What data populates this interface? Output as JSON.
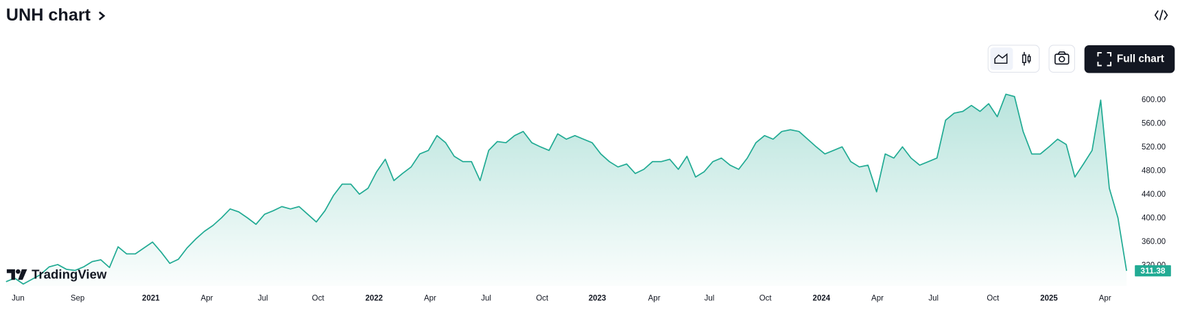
{
  "header": {
    "title": "UNH chart",
    "button_label": "Full chart",
    "logo": "TradingView"
  },
  "chart_data": {
    "type": "area",
    "color": "#22ab94",
    "values": [
      293,
      299,
      289,
      297,
      305,
      318,
      322,
      314,
      312,
      318,
      327,
      330,
      317,
      352,
      340,
      340,
      350,
      360,
      343,
      324,
      331,
      350,
      365,
      378,
      388,
      401,
      416,
      411,
      401,
      390,
      407,
      413,
      420,
      416,
      420,
      407,
      394,
      413,
      439,
      458,
      458,
      441,
      451,
      479,
      500,
      464,
      476,
      487,
      509,
      515,
      540,
      528,
      505,
      496,
      496,
      464,
      515,
      530,
      528,
      540,
      547,
      528,
      521,
      515,
      543,
      534,
      540,
      534,
      528,
      509,
      496,
      487,
      492,
      476,
      483,
      496,
      496,
      500,
      483,
      505,
      470,
      479,
      496,
      502,
      490,
      483,
      502,
      528,
      540,
      534,
      547,
      550,
      547,
      534,
      521,
      509,
      515,
      521,
      496,
      487,
      490,
      445,
      509,
      502,
      521,
      502,
      490,
      496,
      502,
      566,
      578,
      581,
      591,
      581,
      594,
      572,
      610,
      606,
      547,
      509,
      509,
      521,
      534,
      525,
      470,
      492,
      515,
      600,
      451,
      401,
      311.38
    ],
    "xlim": [
      0,
      130
    ],
    "xticks": [
      {
        "value": 1.4,
        "label": "Jun"
      },
      {
        "value": 8.3,
        "label": "Sep"
      },
      {
        "value": 16.8,
        "label": "2021"
      },
      {
        "value": 23.3,
        "label": "Apr"
      },
      {
        "value": 29.8,
        "label": "Jul"
      },
      {
        "value": 36.2,
        "label": "Oct"
      },
      {
        "value": 42.7,
        "label": "2022"
      },
      {
        "value": 49.2,
        "label": "Apr"
      },
      {
        "value": 55.7,
        "label": "Jul"
      },
      {
        "value": 62.2,
        "label": "Oct"
      },
      {
        "value": 68.6,
        "label": "2023"
      },
      {
        "value": 75.2,
        "label": "Apr"
      },
      {
        "value": 81.6,
        "label": "Jul"
      },
      {
        "value": 88.1,
        "label": "Oct"
      },
      {
        "value": 94.6,
        "label": "2024"
      },
      {
        "value": 101.1,
        "label": "Apr"
      },
      {
        "value": 107.6,
        "label": "Jul"
      },
      {
        "value": 114.5,
        "label": "Oct"
      },
      {
        "value": 121.0,
        "label": "2025"
      },
      {
        "value": 127.5,
        "label": "Apr"
      }
    ],
    "ylim": [
      286,
      642
    ],
    "yticks": [
      {
        "value": 320,
        "label": "320.00"
      },
      {
        "value": 360,
        "label": "360.00"
      },
      {
        "value": 400,
        "label": "400.00"
      },
      {
        "value": 440,
        "label": "440.00"
      },
      {
        "value": 480,
        "label": "480.00"
      },
      {
        "value": 520,
        "label": "520.00"
      },
      {
        "value": 560,
        "label": "560.00"
      },
      {
        "value": 600,
        "label": "600.00"
      }
    ]
  }
}
